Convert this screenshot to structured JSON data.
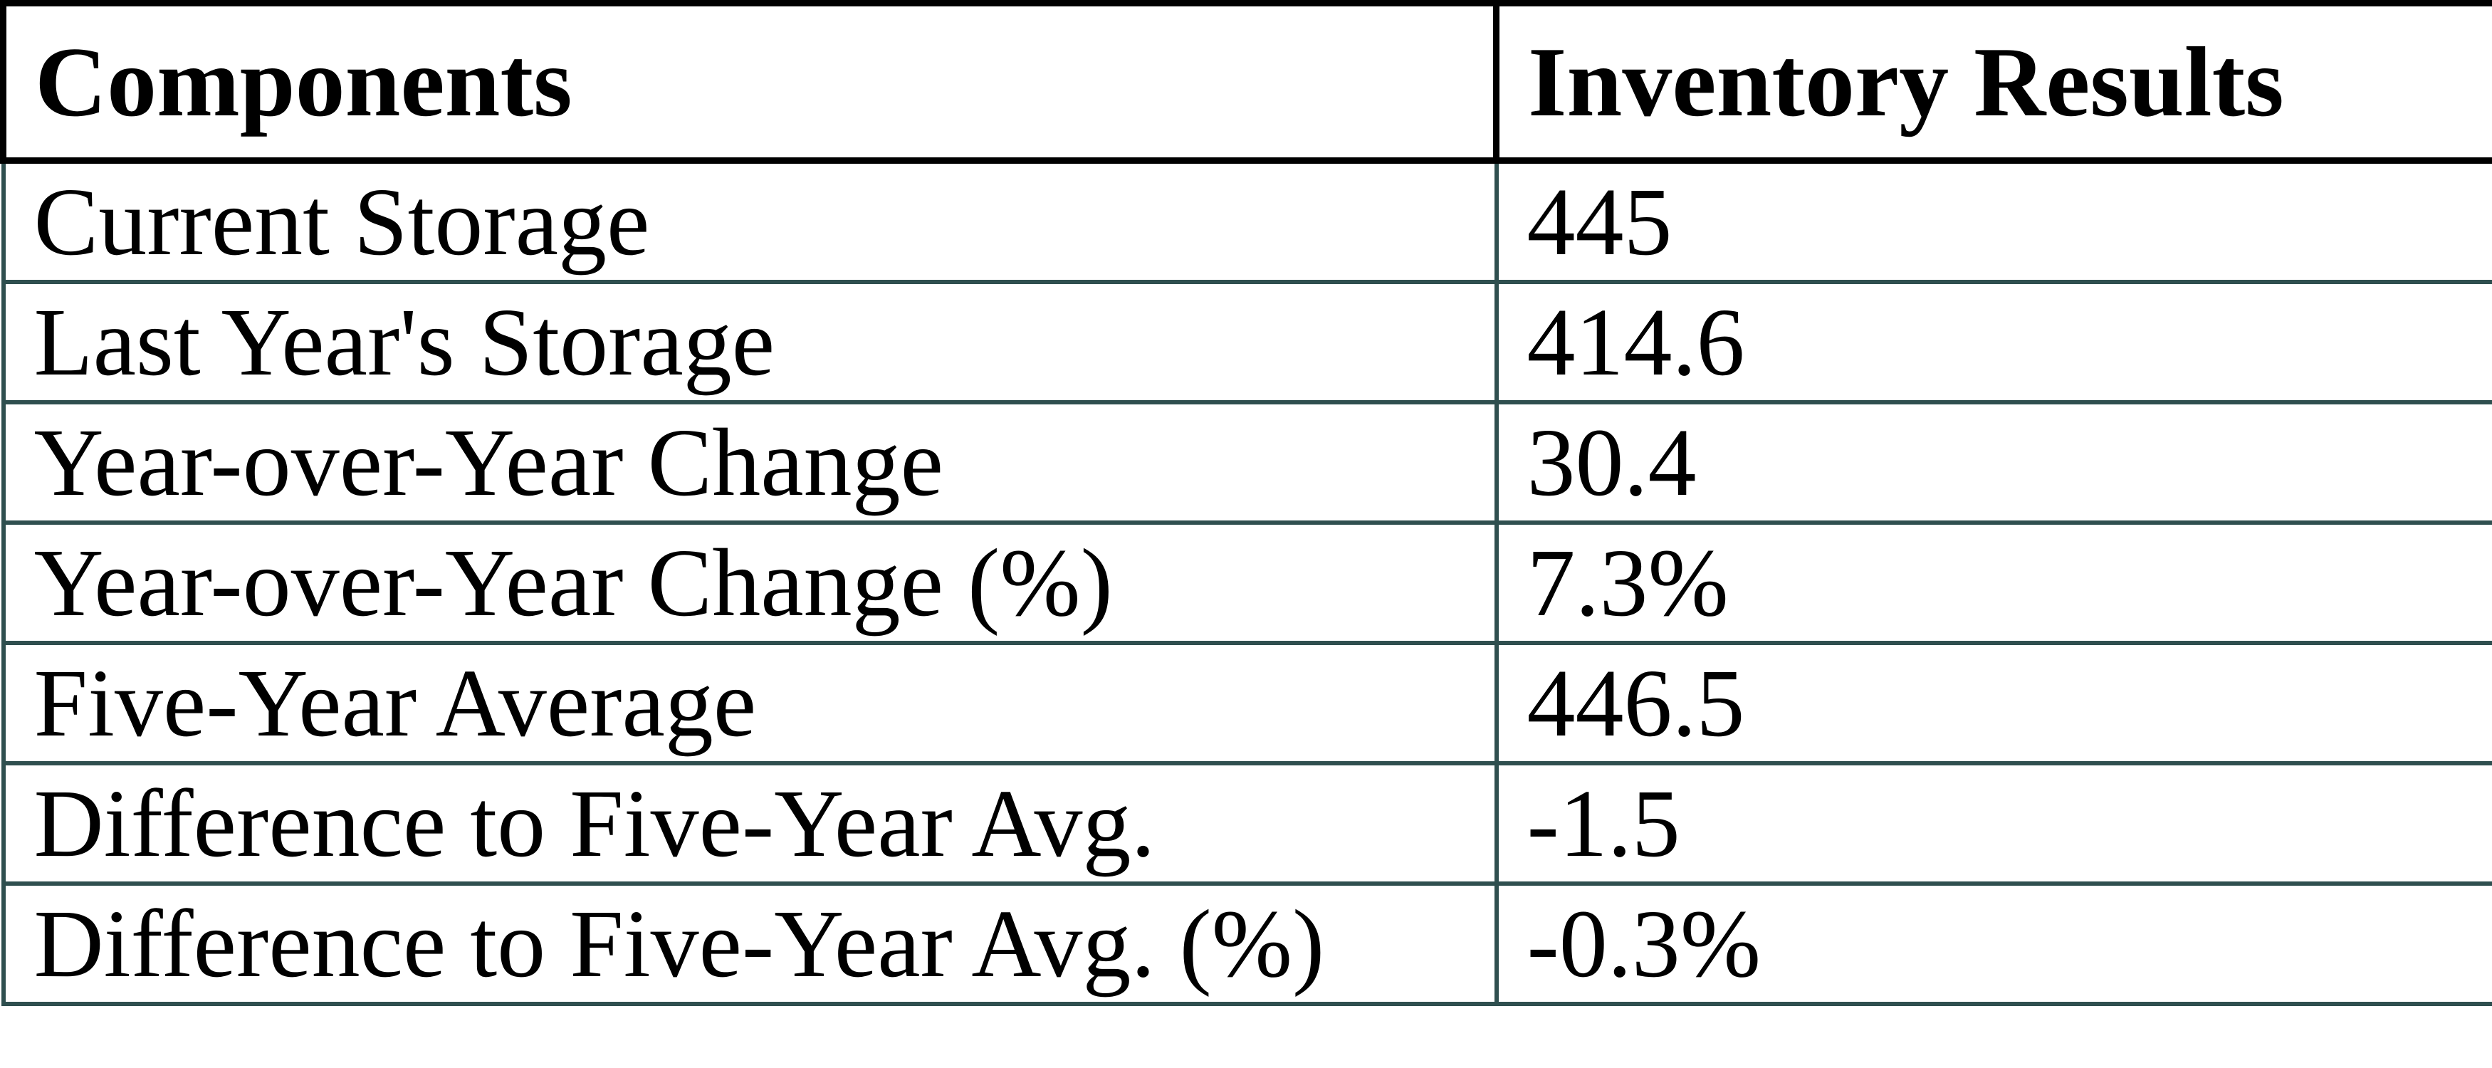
{
  "table": {
    "columns": [
      {
        "label": "Components"
      },
      {
        "label": "Inventory Results"
      }
    ],
    "rows": [
      {
        "label": "Current Storage",
        "value": "445"
      },
      {
        "label": "Last Year's Storage",
        "value": "414.6"
      },
      {
        "label": "Year-over-Year Change",
        "value": "30.4"
      },
      {
        "label": "Year-over-Year Change (%)",
        "value": "7.3%"
      },
      {
        "label": "Five-Year Average",
        "value": "446.5"
      },
      {
        "label": "Difference to Five-Year Avg.",
        "value": "-1.5"
      },
      {
        "label": "Difference to Five-Year Avg. (%)",
        "value": "-0.3%"
      }
    ]
  },
  "colors": {
    "header_border": "#000000",
    "body_border": "#2F4F4F",
    "text_color": "#000000",
    "page_bg": "#FFFFFF"
  }
}
